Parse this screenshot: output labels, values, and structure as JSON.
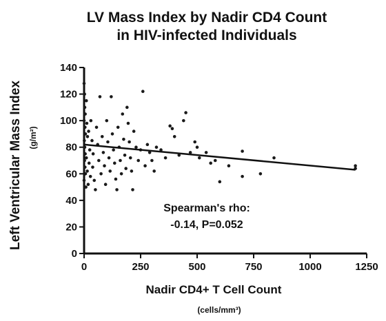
{
  "chart_data": {
    "type": "scatter",
    "title": [
      "LV Mass Index by Nadir CD4 Count",
      "in HIV-infected Individuals"
    ],
    "y_label": "Left Ventricular Mass Index",
    "y_unit": "(g/m²)",
    "x_label": "Nadir CD4+ T Cell Count",
    "x_unit": "(cells/mm³)",
    "annotation": [
      "Spearman's rho:",
      "-0.14, P=0.052"
    ],
    "color": "#1a1a1a",
    "xlim": [
      0,
      1250
    ],
    "xticks": [
      0,
      250,
      500,
      750,
      1000,
      1250
    ],
    "ylim": [
      0,
      140
    ],
    "yticks": [
      0,
      20,
      40,
      60,
      80,
      100,
      120,
      140
    ],
    "x": [
      0,
      2,
      3,
      5,
      0,
      4,
      6,
      1,
      3,
      5,
      2,
      4,
      6,
      0,
      8,
      10,
      12,
      15,
      10,
      14,
      18,
      20,
      25,
      22,
      28,
      30,
      35,
      40,
      38,
      45,
      50,
      55,
      60,
      65,
      70,
      75,
      80,
      85,
      90,
      95,
      100,
      105,
      110,
      115,
      120,
      125,
      130,
      135,
      140,
      145,
      150,
      155,
      160,
      165,
      170,
      175,
      180,
      185,
      190,
      195,
      200,
      205,
      210,
      215,
      220,
      230,
      240,
      250,
      260,
      270,
      280,
      290,
      300,
      310,
      320,
      340,
      360,
      380,
      390,
      400,
      420,
      440,
      450,
      470,
      490,
      500,
      510,
      540,
      560,
      580,
      600,
      640,
      700,
      700,
      780,
      840,
      1200,
      1200
    ],
    "values": [
      128,
      120,
      110,
      105,
      100,
      95,
      90,
      85,
      80,
      75,
      70,
      65,
      60,
      55,
      50,
      115,
      98,
      88,
      72,
      62,
      52,
      92,
      78,
      68,
      58,
      100,
      85,
      75,
      65,
      55,
      48,
      95,
      82,
      70,
      118,
      60,
      88,
      76,
      66,
      52,
      100,
      84,
      72,
      62,
      118,
      90,
      78,
      68,
      56,
      48,
      95,
      80,
      70,
      60,
      105,
      86,
      74,
      64,
      110,
      98,
      84,
      72,
      62,
      48,
      92,
      80,
      70,
      78,
      122,
      66,
      82,
      76,
      70,
      62,
      80,
      78,
      72,
      96,
      94,
      88,
      74,
      100,
      106,
      76,
      84,
      80,
      72,
      76,
      68,
      70,
      54,
      66,
      58,
      77,
      60,
      72,
      64,
      66
    ],
    "trendline": {
      "x": [
        0,
        1200
      ],
      "y": [
        82,
        63
      ]
    }
  }
}
